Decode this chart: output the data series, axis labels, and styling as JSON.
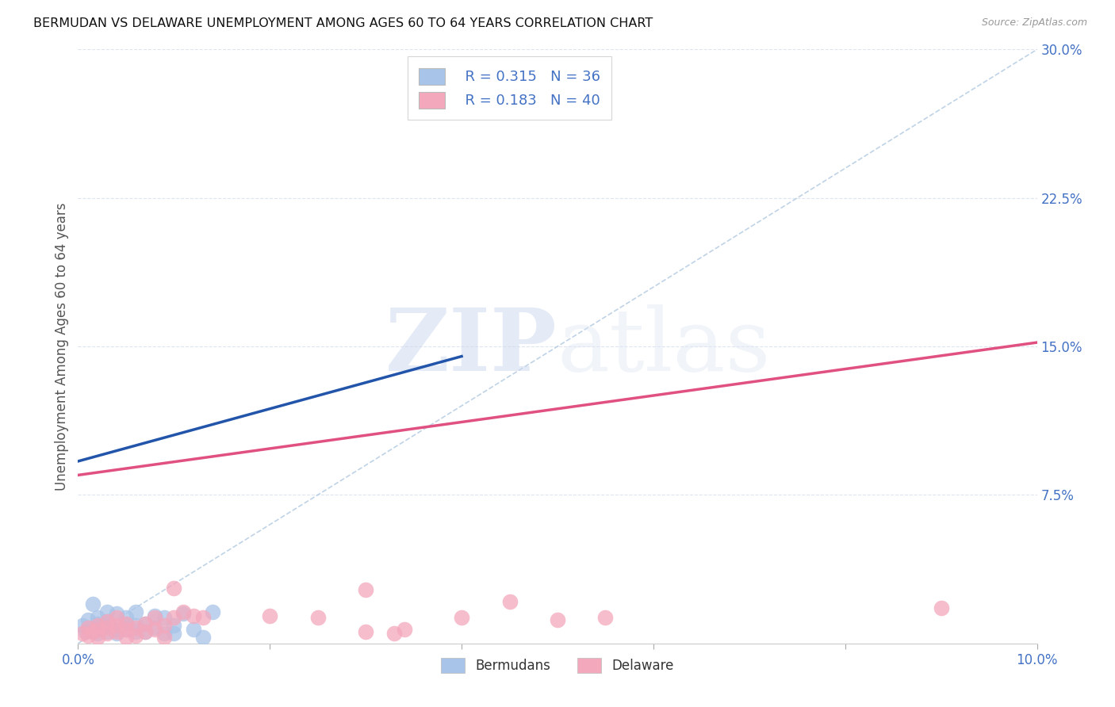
{
  "title": "BERMUDAN VS DELAWARE UNEMPLOYMENT AMONG AGES 60 TO 64 YEARS CORRELATION CHART",
  "source": "Source: ZipAtlas.com",
  "ylabel": "Unemployment Among Ages 60 to 64 years",
  "xlim": [
    0.0,
    0.1
  ],
  "ylim": [
    0.0,
    0.3
  ],
  "xticks": [
    0.0,
    0.02,
    0.04,
    0.06,
    0.08,
    0.1
  ],
  "yticks": [
    0.0,
    0.075,
    0.15,
    0.225,
    0.3
  ],
  "xticklabels": [
    "0.0%",
    "",
    "",
    "",
    "",
    "10.0%"
  ],
  "yticklabels": [
    "",
    "7.5%",
    "15.0%",
    "22.5%",
    "30.0%"
  ],
  "legend_r_blue": "R = 0.315",
  "legend_n_blue": "N = 36",
  "legend_r_pink": "R = 0.183",
  "legend_n_pink": "N = 40",
  "watermark_zip": "ZIP",
  "watermark_atlas": "atlas",
  "blue_color": "#a8c4e8",
  "pink_color": "#f4a8bc",
  "blue_line_color": "#2255aa",
  "pink_line_color": "#e05080",
  "dashed_line_color": "#b0c8e0",
  "title_color": "#111111",
  "axis_label_color": "#4472c4",
  "grid_color": "#dde5f0",
  "blue_points": [
    [
      0.0005,
      0.009
    ],
    [
      0.0008,
      0.006
    ],
    [
      0.001,
      0.008
    ],
    [
      0.001,
      0.012
    ],
    [
      0.0015,
      0.02
    ],
    [
      0.002,
      0.005
    ],
    [
      0.002,
      0.007
    ],
    [
      0.002,
      0.01
    ],
    [
      0.002,
      0.013
    ],
    [
      0.0025,
      0.008
    ],
    [
      0.003,
      0.006
    ],
    [
      0.003,
      0.009
    ],
    [
      0.003,
      0.011
    ],
    [
      0.003,
      0.016
    ],
    [
      0.0035,
      0.008
    ],
    [
      0.004,
      0.005
    ],
    [
      0.004,
      0.007
    ],
    [
      0.004,
      0.015
    ],
    [
      0.005,
      0.007
    ],
    [
      0.005,
      0.01
    ],
    [
      0.005,
      0.013
    ],
    [
      0.006,
      0.006
    ],
    [
      0.006,
      0.009
    ],
    [
      0.006,
      0.016
    ],
    [
      0.007,
      0.006
    ],
    [
      0.007,
      0.01
    ],
    [
      0.008,
      0.008
    ],
    [
      0.008,
      0.014
    ],
    [
      0.009,
      0.005
    ],
    [
      0.009,
      0.013
    ],
    [
      0.01,
      0.005
    ],
    [
      0.01,
      0.009
    ],
    [
      0.011,
      0.015
    ],
    [
      0.012,
      0.007
    ],
    [
      0.013,
      0.003
    ],
    [
      0.014,
      0.016
    ]
  ],
  "pink_points": [
    [
      0.0005,
      0.005
    ],
    [
      0.001,
      0.004
    ],
    [
      0.001,
      0.008
    ],
    [
      0.0015,
      0.006
    ],
    [
      0.002,
      0.003
    ],
    [
      0.002,
      0.007
    ],
    [
      0.002,
      0.009
    ],
    [
      0.003,
      0.005
    ],
    [
      0.003,
      0.008
    ],
    [
      0.003,
      0.011
    ],
    [
      0.004,
      0.006
    ],
    [
      0.004,
      0.009
    ],
    [
      0.004,
      0.013
    ],
    [
      0.005,
      0.003
    ],
    [
      0.005,
      0.007
    ],
    [
      0.005,
      0.01
    ],
    [
      0.006,
      0.004
    ],
    [
      0.006,
      0.008
    ],
    [
      0.007,
      0.006
    ],
    [
      0.007,
      0.01
    ],
    [
      0.008,
      0.007
    ],
    [
      0.008,
      0.013
    ],
    [
      0.009,
      0.003
    ],
    [
      0.009,
      0.009
    ],
    [
      0.01,
      0.013
    ],
    [
      0.011,
      0.016
    ],
    [
      0.012,
      0.014
    ],
    [
      0.013,
      0.013
    ],
    [
      0.02,
      0.014
    ],
    [
      0.025,
      0.013
    ],
    [
      0.03,
      0.006
    ],
    [
      0.033,
      0.005
    ],
    [
      0.034,
      0.007
    ],
    [
      0.04,
      0.013
    ],
    [
      0.045,
      0.021
    ],
    [
      0.05,
      0.012
    ],
    [
      0.055,
      0.013
    ],
    [
      0.01,
      0.028
    ],
    [
      0.03,
      0.027
    ],
    [
      0.09,
      0.018
    ]
  ],
  "blue_trendline_x": [
    0.0,
    0.04
  ],
  "blue_trendline_y": [
    0.092,
    0.145
  ],
  "pink_trendline_x": [
    0.0,
    0.1
  ],
  "pink_trendline_y": [
    0.085,
    0.152
  ],
  "dashed_line_x": [
    0.0,
    0.1
  ],
  "dashed_line_y": [
    0.0,
    0.3
  ]
}
